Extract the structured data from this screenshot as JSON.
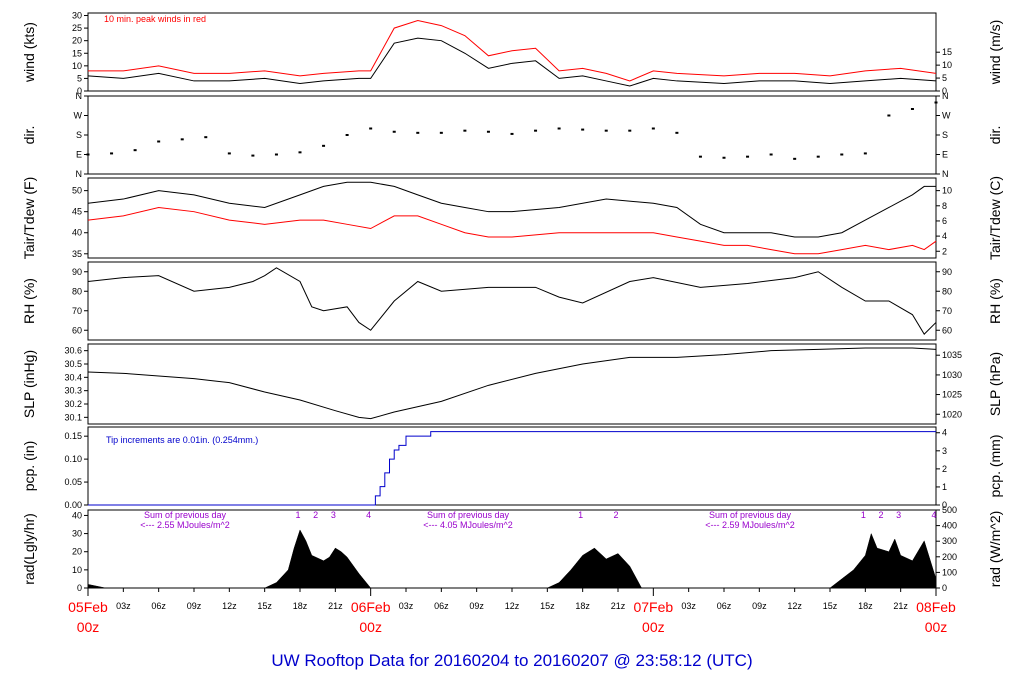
{
  "title": "UW Rooftop Data for 20160204  to  20160207 @ 23:58:12  (UTC)",
  "colors": {
    "frame": "#000000",
    "red": "#ff0000",
    "blue": "#0000cc",
    "purple": "#9900cc"
  },
  "time_axis": {
    "hour_ticks": [
      "03z",
      "06z",
      "09z",
      "12z",
      "15z",
      "18z",
      "21z",
      "03z",
      "06z",
      "09z",
      "12z",
      "15z",
      "18z",
      "21z",
      "03z",
      "06z",
      "09z",
      "12z",
      "15z",
      "18z",
      "21z"
    ],
    "days": [
      {
        "date": "05Feb",
        "hour": "00z"
      },
      {
        "date": "06Feb",
        "hour": "00z"
      },
      {
        "date": "07Feb",
        "hour": "00z"
      },
      {
        "date": "08Feb",
        "hour": "00z"
      }
    ]
  },
  "panels": {
    "wind": {
      "left_label": "wind (kts)",
      "right_label": "wind (m/s)",
      "note": "10 min. peak winds in red",
      "left_ticks": [
        "0",
        "5",
        "10",
        "15",
        "20",
        "25",
        "30"
      ],
      "right_ticks": [
        "0",
        "5",
        "10",
        "15"
      ]
    },
    "dir": {
      "left_label": "dir.",
      "right_label": "dir.",
      "left_ticks": [
        "N",
        "E",
        "S",
        "W",
        "N"
      ],
      "right_ticks": [
        "N",
        "E",
        "S",
        "W",
        "N"
      ]
    },
    "temp": {
      "left_label": "Tair/Tdew (F)",
      "right_label": "Tair/Tdew (C)",
      "left_ticks": [
        "35",
        "40",
        "45",
        "50"
      ],
      "right_ticks": [
        "2",
        "4",
        "6",
        "8",
        "10"
      ]
    },
    "rh": {
      "left_label": "RH (%)",
      "right_label": "RH (%)",
      "left_ticks": [
        "60",
        "70",
        "80",
        "90"
      ],
      "right_ticks": [
        "60",
        "70",
        "80",
        "90"
      ]
    },
    "slp": {
      "left_label": "SLP (inHg)",
      "right_label": "SLP (hPa)",
      "left_ticks": [
        "30.1",
        "30.2",
        "30.3",
        "30.4",
        "30.5",
        "30.6"
      ],
      "right_ticks": [
        "1020",
        "1025",
        "1030",
        "1035"
      ]
    },
    "pcp": {
      "left_label": "pcp. (in)",
      "right_label": "pcp. (mm)",
      "note": "Tip increments are 0.01in. (0.254mm.)",
      "left_ticks": [
        "0.00",
        "0.05",
        "0.10",
        "0.15"
      ],
      "right_ticks": [
        "0",
        "1",
        "2",
        "3",
        "4"
      ]
    },
    "rad": {
      "left_label": "rad(Lgly/hr)",
      "right_label": "rad (W/m^2)",
      "left_ticks": [
        "0",
        "10",
        "20",
        "30",
        "40"
      ],
      "right_ticks": [
        "0",
        "100",
        "200",
        "300",
        "400",
        "500"
      ],
      "day_sums": [
        {
          "line1": "Sum of previous day",
          "line2": "<--- 2.55 MJoules/m^2"
        },
        {
          "line1": "Sum of previous day",
          "line2": "<--- 4.05 MJoules/m^2"
        },
        {
          "line1": "Sum of previous day",
          "line2": "<--- 2.59 MJoules/m^2"
        }
      ],
      "hour_marks": [
        {
          "hour": 18,
          "text": "1"
        },
        {
          "hour": 19.5,
          "text": "2"
        },
        {
          "hour": 21,
          "text": "3"
        },
        {
          "hour": 24,
          "text": "4"
        },
        {
          "hour": 42,
          "text": "1"
        },
        {
          "hour": 45,
          "text": "2"
        },
        {
          "hour": 66,
          "text": "1"
        },
        {
          "hour": 67.5,
          "text": "2"
        },
        {
          "hour": 69,
          "text": "3"
        },
        {
          "hour": 72,
          "text": "4"
        }
      ]
    }
  },
  "chart_data": [
    {
      "type": "line",
      "title": "",
      "ylabel": "wind (kts)",
      "ylabel_right": "wind (m/s)",
      "x_unit": "hours since 05Feb 00z",
      "ylim": [
        0,
        31
      ],
      "series": [
        {
          "name": "",
          "x": [
            0,
            3,
            6,
            9,
            12,
            15,
            18,
            20,
            23,
            24,
            26,
            28,
            30,
            32,
            34,
            36,
            38,
            40,
            42,
            44,
            46,
            48,
            50,
            54,
            57,
            60,
            63,
            66,
            69,
            72
          ],
          "y": [
            6,
            5,
            7,
            4,
            4,
            5,
            3,
            4,
            5,
            5,
            19,
            21,
            20,
            15,
            9,
            11,
            12,
            5,
            6,
            4,
            2,
            5,
            4,
            3,
            4,
            4,
            3,
            4,
            5,
            4
          ]
        },
        {
          "name": "10 min. peak winds in red",
          "x": [
            0,
            3,
            6,
            9,
            12,
            15,
            18,
            20,
            23,
            24,
            26,
            28,
            30,
            32,
            34,
            36,
            38,
            40,
            42,
            44,
            46,
            48,
            50,
            54,
            57,
            60,
            63,
            66,
            69,
            72
          ],
          "y": [
            8,
            8,
            10,
            7,
            7,
            8,
            6,
            7,
            8,
            8,
            25,
            28,
            26,
            22,
            14,
            16,
            17,
            8,
            9,
            7,
            4,
            8,
            7,
            6,
            7,
            7,
            6,
            8,
            9,
            7
          ]
        }
      ]
    },
    {
      "type": "scatter",
      "title": "",
      "ylabel": "dir.",
      "y_unit": "wind direction in degrees",
      "y_ticks_shown": [
        "N",
        "E",
        "S",
        "W",
        "N"
      ],
      "series": [
        {
          "name": "",
          "x": [
            0,
            2,
            4,
            6,
            8,
            10,
            12,
            14,
            16,
            18,
            20,
            22,
            24,
            26,
            28,
            30,
            32,
            34,
            36,
            38,
            40,
            42,
            44,
            46,
            48,
            50,
            52,
            54,
            56,
            58,
            60,
            62,
            64,
            66,
            68,
            70,
            72
          ],
          "y": [
            90,
            95,
            110,
            150,
            160,
            170,
            95,
            85,
            90,
            100,
            130,
            180,
            210,
            195,
            190,
            190,
            200,
            195,
            185,
            200,
            210,
            205,
            200,
            200,
            210,
            190,
            80,
            75,
            80,
            90,
            70,
            80,
            90,
            95,
            270,
            300,
            330
          ]
        }
      ]
    },
    {
      "type": "line",
      "title": "",
      "ylabel": "Tair/Tdew (F)",
      "ylabel_right": "Tair/Tdew (C)",
      "x_unit": "hours since 05Feb 00z",
      "ylim": [
        34,
        53
      ],
      "series": [
        {
          "name": "Tair",
          "x": [
            0,
            3,
            6,
            9,
            12,
            15,
            18,
            20,
            22,
            24,
            26,
            28,
            30,
            32,
            34,
            36,
            40,
            44,
            48,
            50,
            52,
            54,
            56,
            58,
            60,
            62,
            64,
            66,
            68,
            70,
            71,
            72
          ],
          "y": [
            47,
            48,
            50,
            49,
            47,
            46,
            49,
            51,
            52,
            52,
            51,
            49,
            47,
            46,
            45,
            45,
            46,
            48,
            47,
            46,
            42,
            40,
            40,
            40,
            39,
            39,
            40,
            43,
            46,
            49,
            51,
            51
          ]
        },
        {
          "name": "Tdew",
          "x": [
            0,
            3,
            6,
            9,
            12,
            15,
            18,
            20,
            22,
            24,
            26,
            28,
            30,
            32,
            34,
            36,
            40,
            44,
            48,
            50,
            52,
            54,
            56,
            58,
            60,
            62,
            64,
            66,
            68,
            70,
            71,
            72
          ],
          "y": [
            43,
            44,
            46,
            45,
            43,
            42,
            43,
            43,
            42,
            41,
            44,
            44,
            42,
            40,
            39,
            39,
            40,
            40,
            40,
            39,
            38,
            37,
            37,
            36,
            35,
            35,
            36,
            37,
            36,
            37,
            36,
            38
          ]
        }
      ]
    },
    {
      "type": "line",
      "title": "",
      "ylabel": "RH (%)",
      "ylabel_right": "RH (%)",
      "x_unit": "hours since 05Feb 00z",
      "ylim": [
        55,
        95
      ],
      "series": [
        {
          "name": "",
          "x": [
            0,
            3,
            6,
            9,
            12,
            14,
            15,
            16,
            18,
            19,
            20,
            22,
            23,
            24,
            26,
            28,
            30,
            34,
            38,
            40,
            42,
            46,
            48,
            52,
            56,
            60,
            62,
            64,
            66,
            68,
            70,
            71,
            72
          ],
          "y": [
            85,
            87,
            88,
            80,
            82,
            85,
            88,
            92,
            85,
            72,
            70,
            72,
            64,
            60,
            75,
            85,
            80,
            82,
            82,
            77,
            74,
            85,
            87,
            82,
            84,
            87,
            90,
            82,
            75,
            75,
            68,
            58,
            64
          ]
        }
      ]
    },
    {
      "type": "line",
      "title": "",
      "ylabel": "SLP (inHg)",
      "ylabel_right": "SLP (hPa)",
      "x_unit": "hours since 05Feb 00z",
      "ylim": [
        30.05,
        30.65
      ],
      "series": [
        {
          "name": "",
          "x": [
            0,
            3,
            6,
            9,
            12,
            15,
            18,
            21,
            23,
            24,
            26,
            30,
            34,
            38,
            42,
            46,
            50,
            54,
            58,
            62,
            66,
            70,
            72
          ],
          "y": [
            30.44,
            30.43,
            30.41,
            30.39,
            30.36,
            30.29,
            30.23,
            30.15,
            30.1,
            30.09,
            30.14,
            30.22,
            30.34,
            30.43,
            30.5,
            30.55,
            30.55,
            30.57,
            30.6,
            30.61,
            30.62,
            30.62,
            30.61
          ]
        }
      ]
    },
    {
      "type": "line",
      "title": "",
      "ylabel": "pcp. (in)",
      "ylabel_right": "pcp. (mm)",
      "note": "Tip increments are 0.01in. (0.254mm.)",
      "x_unit": "hours since 05Feb 00z",
      "ylim": [
        0,
        0.17
      ],
      "series": [
        {
          "name": "",
          "x": [
            0,
            24,
            24.4,
            24.8,
            25.2,
            25.6,
            26,
            26.4,
            27,
            28,
            29,
            29.1,
            72
          ],
          "y": [
            0,
            0,
            0.02,
            0.04,
            0.07,
            0.1,
            0.12,
            0.13,
            0.15,
            0.15,
            0.15,
            0.16,
            0.16
          ]
        }
      ]
    },
    {
      "type": "area",
      "title": "",
      "ylabel": "rad(Lgly/hr)",
      "ylabel_right": "rad (W/m^2)",
      "x_unit": "hours since 05Feb 00z",
      "ylim": [
        0,
        43
      ],
      "series": [
        {
          "name": "",
          "x": [
            0,
            1.5,
            15,
            16,
            17,
            17.5,
            18,
            18.5,
            19,
            20,
            20.5,
            21,
            21.5,
            22,
            23,
            24,
            39,
            40,
            41,
            42,
            43,
            44,
            45,
            46,
            47,
            63,
            64,
            65,
            66,
            66.5,
            67,
            68,
            68.5,
            69,
            70,
            71,
            72
          ],
          "y": [
            2,
            0,
            0,
            3,
            10,
            22,
            32,
            26,
            18,
            15,
            17,
            22,
            20,
            17,
            8,
            0,
            0,
            3,
            10,
            18,
            22,
            16,
            19,
            12,
            0,
            0,
            5,
            10,
            18,
            30,
            22,
            20,
            27,
            18,
            15,
            26,
            5
          ]
        }
      ]
    }
  ]
}
